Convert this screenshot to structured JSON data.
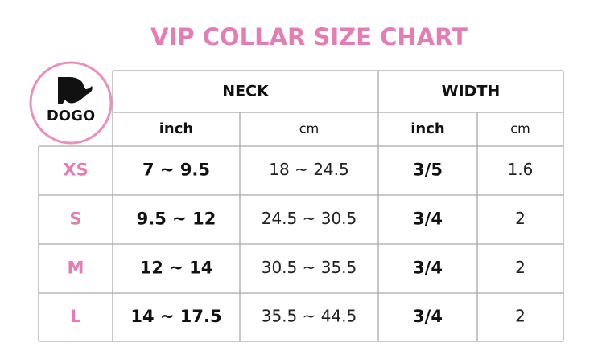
{
  "title": "VIP COLLAR SIZE CHART",
  "logo": {
    "text": "DOGO"
  },
  "table": {
    "groups": [
      "NECK",
      "WIDTH"
    ],
    "units": [
      "inch",
      "cm",
      "inch",
      "cm"
    ],
    "rows": [
      [
        "XS",
        "7 ~ 9.5",
        "18 ~ 24.5",
        "3/5",
        "1.6"
      ],
      [
        "S",
        "9.5 ~ 12",
        "24.5 ~ 30.5",
        "3/4",
        "2"
      ],
      [
        "M",
        "12 ~ 14",
        "30.5 ~ 35.5",
        "3/4",
        "2"
      ],
      [
        "L",
        "14 ~ 17.5",
        "35.5 ~ 44.5",
        "3/4",
        "2"
      ]
    ]
  }
}
